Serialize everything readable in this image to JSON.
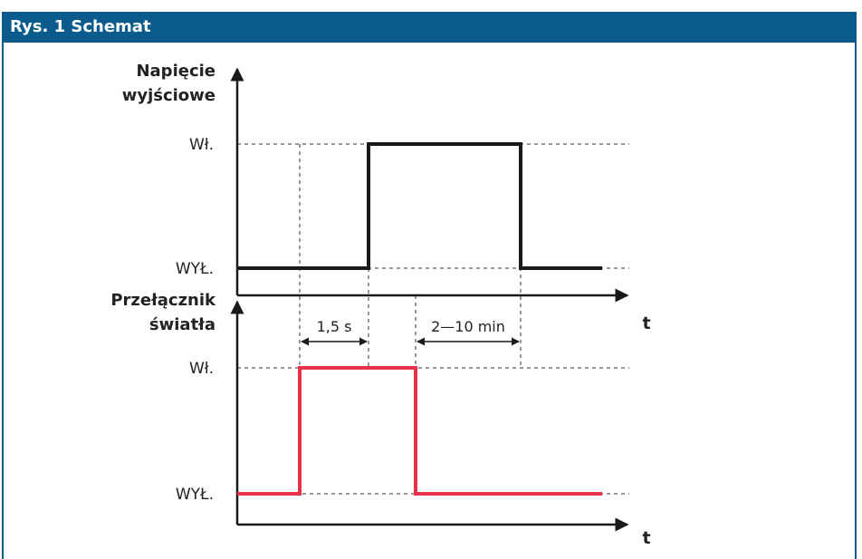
{
  "header": {
    "title": "Rys. 1 Schemat"
  },
  "top_chart": {
    "ylabel_line1": "Napięcie",
    "ylabel_line2": "wyjściowe",
    "level_on": "Wł.",
    "level_off": "WYŁ.",
    "axis_label": "t",
    "signal_color": "#1a1a1a"
  },
  "bottom_chart": {
    "ylabel_line1": "Przełącznik",
    "ylabel_line2": "światła",
    "level_on": "Wł.",
    "level_off": "WYŁ.",
    "axis_label": "t",
    "signal_color": "#e8324b"
  },
  "intervals": {
    "delay": "1,5 s",
    "hold": "2—10 min"
  },
  "colors": {
    "header_bg": "#0b5c8c",
    "axis": "#1a1a1a",
    "guide": "#333333"
  }
}
